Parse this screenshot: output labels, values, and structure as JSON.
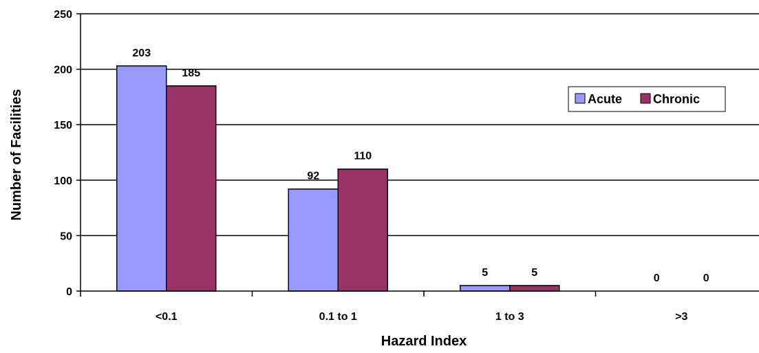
{
  "chart_data": {
    "type": "bar",
    "categories": [
      "<0.1",
      "0.1 to 1",
      "1 to 3",
      ">3"
    ],
    "series": [
      {
        "name": "Acute",
        "values": [
          203,
          92,
          5,
          0
        ],
        "color": "#9999ff"
      },
      {
        "name": "Chronic",
        "values": [
          185,
          110,
          5,
          0
        ],
        "color": "#993366"
      }
    ],
    "xlabel": "Hazard Index",
    "ylabel": "Number of Facilities",
    "ylim": [
      0,
      250
    ],
    "yticks": [
      0,
      50,
      100,
      150,
      200,
      250
    ],
    "grid": true,
    "legend_position": "top-right",
    "data_labels": true
  }
}
